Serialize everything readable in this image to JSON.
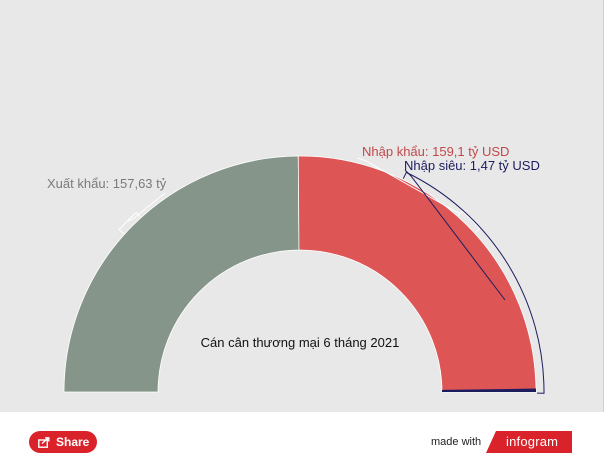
{
  "chart_data": {
    "type": "pie",
    "variant": "semicircle-donut",
    "center_label": "Cán cân thương mại 6 tháng 2021",
    "slices": [
      {
        "name": "Xuất khẩu",
        "value": 157.63,
        "label": "Xuất khẩu: 157,63 tỷ",
        "color": "#86958a"
      },
      {
        "name": "Nhập khẩu",
        "value": 159.1,
        "label": "Nhập khẩu: 159,1 tỷ USD",
        "color": "#de5556"
      }
    ],
    "annotation": {
      "label": "Nhập siêu: 1,47 tỷ USD",
      "value": 1.47,
      "color": "#1c1c5e"
    }
  },
  "footer": {
    "share_label": "Share",
    "made_with": "made with",
    "brand": "infogram",
    "brand_color": "#d9222a"
  }
}
